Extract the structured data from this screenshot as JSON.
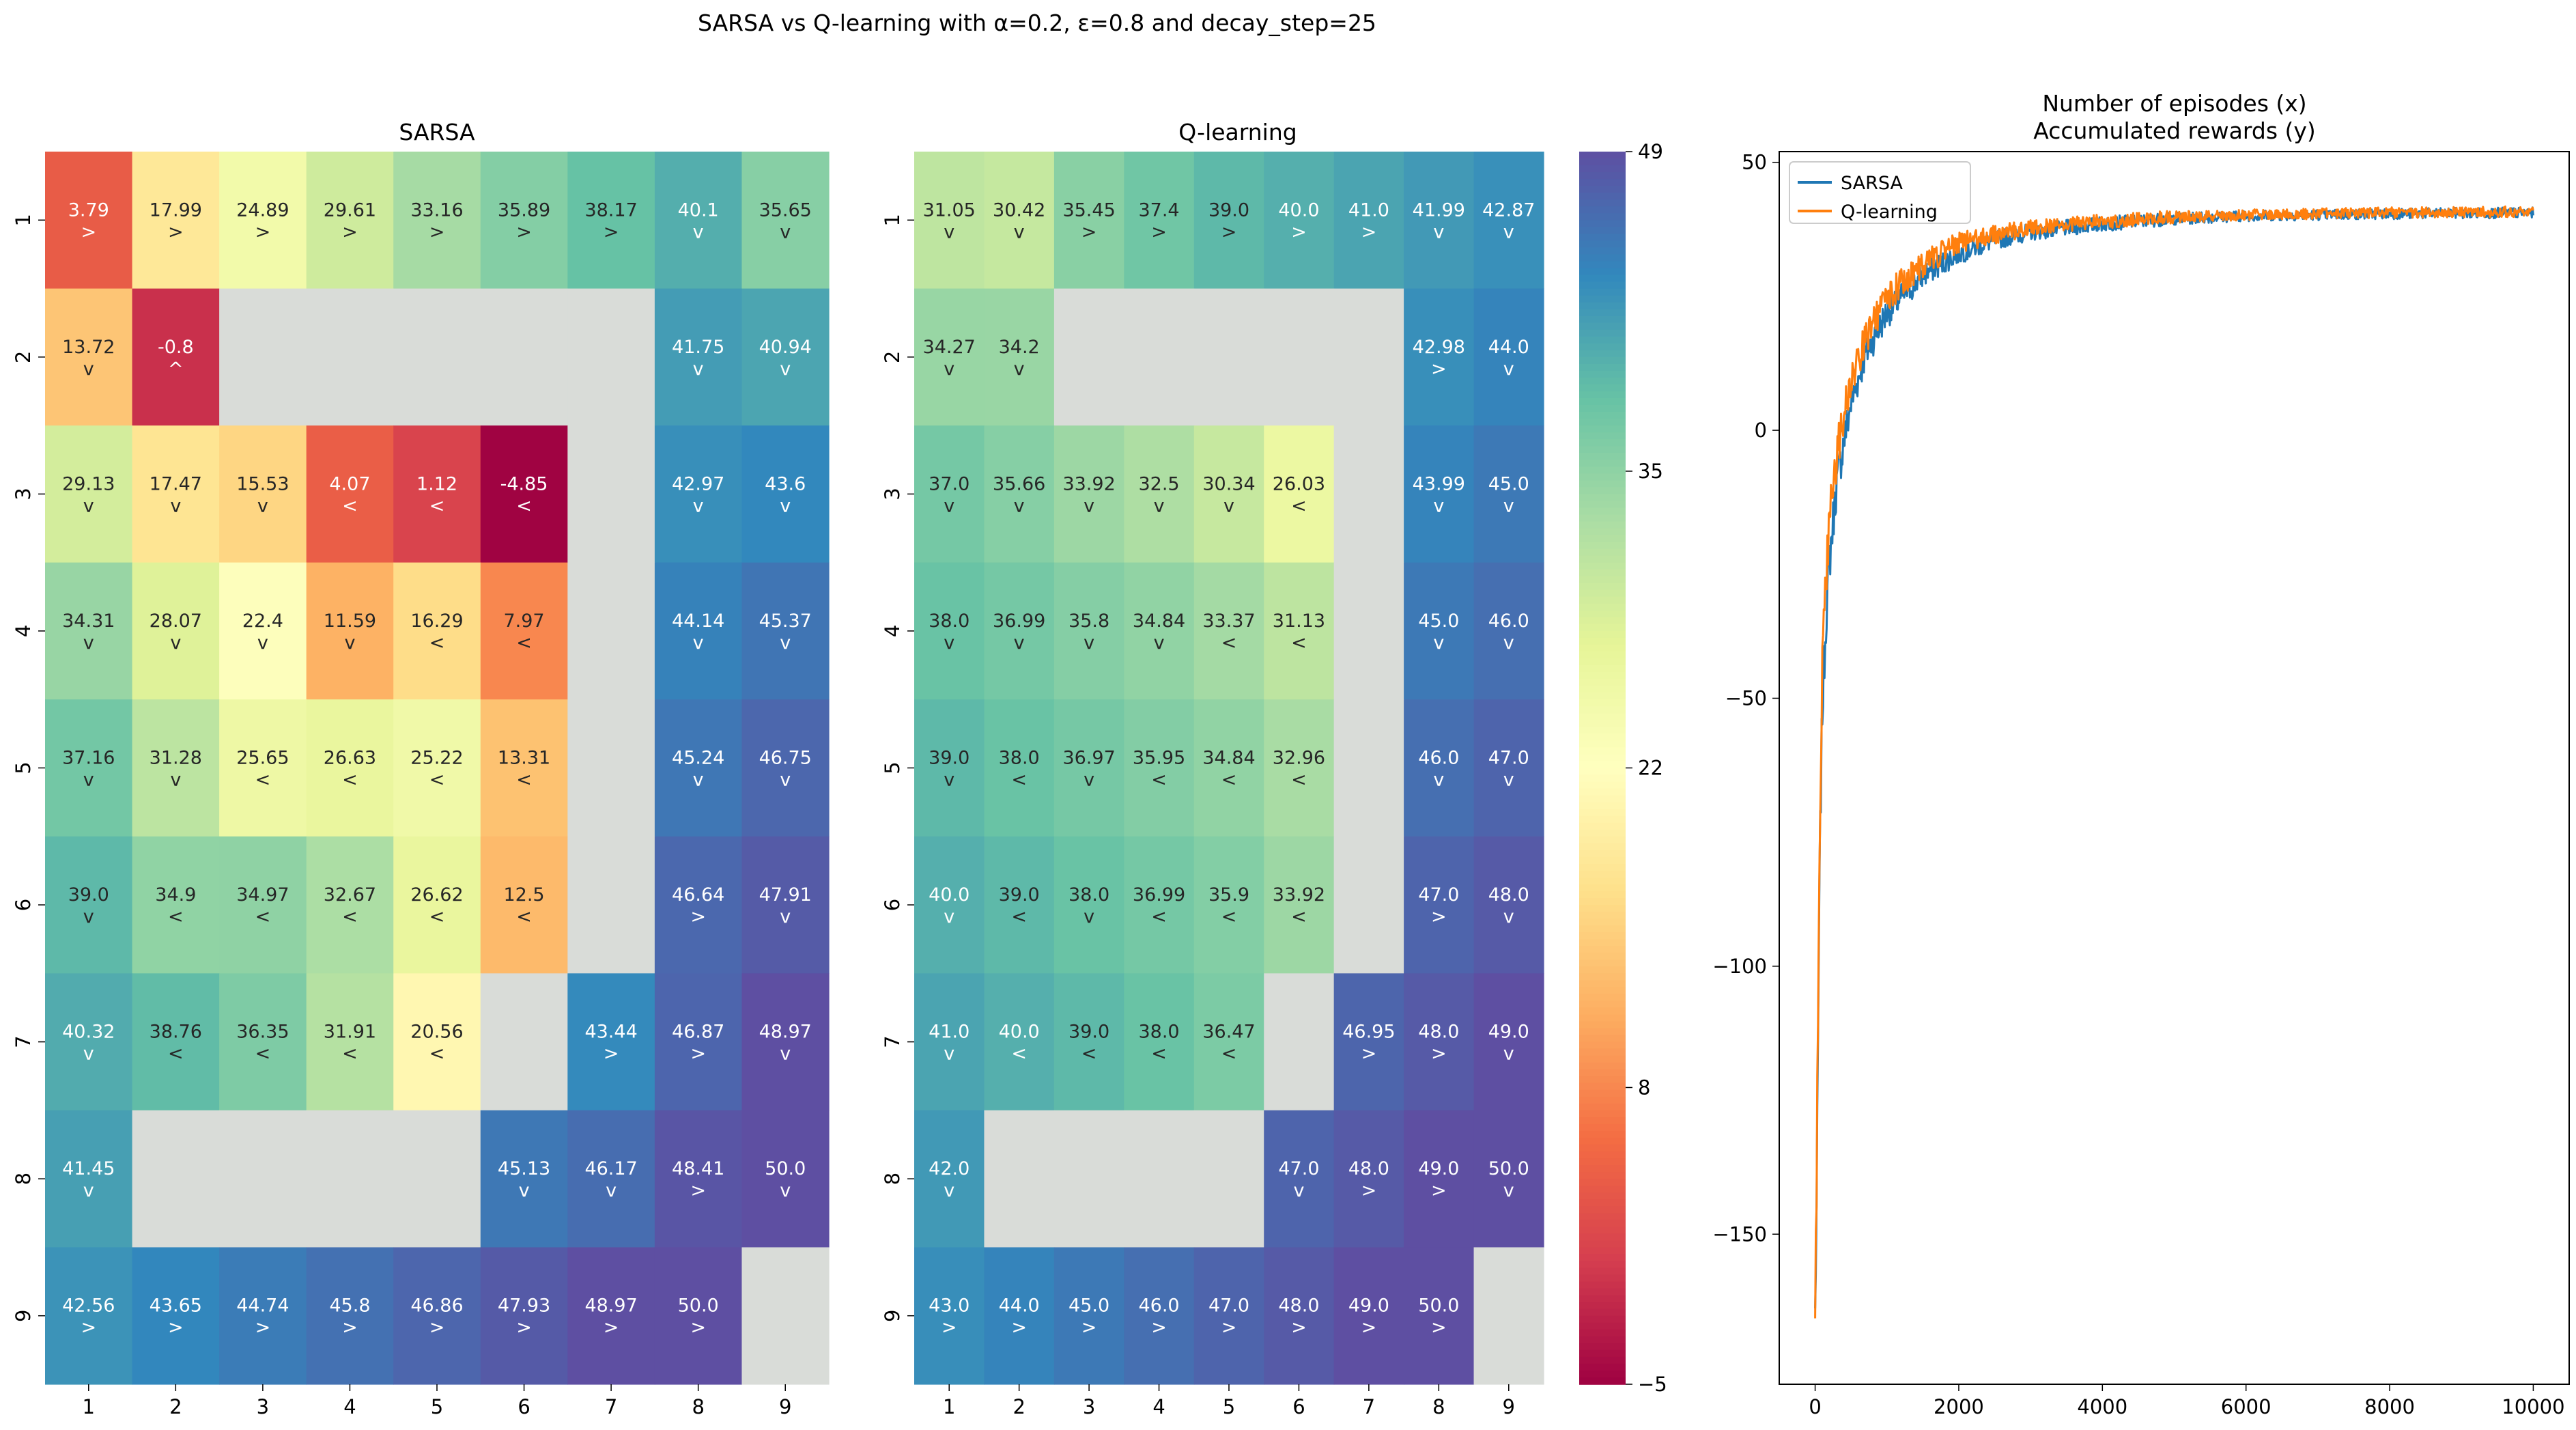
{
  "figure": {
    "suptitle": "SARSA vs Q-learning with α=0.2, ε=0.8 and decay_step=25"
  },
  "colorbar": {
    "vmin": -5,
    "vmax": 49,
    "ticks": [
      -5,
      8,
      22,
      35,
      49
    ],
    "colormap": "Spectral"
  },
  "chart_data": [
    {
      "type": "heatmap",
      "title": "SARSA",
      "x_ticks": [
        "1",
        "2",
        "3",
        "4",
        "5",
        "6",
        "7",
        "8",
        "9"
      ],
      "y_ticks": [
        "1",
        "2",
        "3",
        "4",
        "5",
        "6",
        "7",
        "8",
        "9"
      ],
      "values": [
        [
          3.79,
          17.99,
          24.89,
          29.61,
          33.16,
          35.89,
          38.17,
          40.1,
          35.65
        ],
        [
          13.72,
          -0.8,
          null,
          null,
          null,
          null,
          null,
          41.75,
          40.94
        ],
        [
          29.13,
          17.47,
          15.53,
          4.07,
          1.12,
          -4.85,
          null,
          42.97,
          43.6
        ],
        [
          34.31,
          28.07,
          22.4,
          11.59,
          16.29,
          7.97,
          null,
          44.14,
          45.37
        ],
        [
          37.16,
          31.28,
          25.65,
          26.63,
          25.22,
          13.31,
          null,
          45.24,
          46.75
        ],
        [
          39.0,
          34.9,
          34.97,
          32.67,
          26.62,
          12.5,
          null,
          46.64,
          47.91
        ],
        [
          40.32,
          38.76,
          36.35,
          31.91,
          20.56,
          null,
          43.44,
          46.87,
          48.97
        ],
        [
          41.45,
          null,
          null,
          null,
          null,
          45.13,
          46.17,
          48.41,
          50.0
        ],
        [
          42.56,
          43.65,
          44.74,
          45.8,
          46.86,
          47.93,
          48.97,
          50.0,
          null
        ]
      ],
      "labels": [
        [
          "3.79",
          "17.99",
          "24.89",
          "29.61",
          "33.16",
          "35.89",
          "38.17",
          "40.1",
          "35.65"
        ],
        [
          "13.72",
          "-0.8",
          "",
          "",
          "",
          "",
          "",
          "41.75",
          "40.94"
        ],
        [
          "29.13",
          "17.47",
          "15.53",
          "4.07",
          "1.12",
          "-4.85",
          "",
          "42.97",
          "43.6"
        ],
        [
          "34.31",
          "28.07",
          "22.4",
          "11.59",
          "16.29",
          "7.97",
          "",
          "44.14",
          "45.37"
        ],
        [
          "37.16",
          "31.28",
          "25.65",
          "26.63",
          "25.22",
          "13.31",
          "",
          "45.24",
          "46.75"
        ],
        [
          "39.0",
          "34.9",
          "34.97",
          "32.67",
          "26.62",
          "12.5",
          "",
          "46.64",
          "47.91"
        ],
        [
          "40.32",
          "38.76",
          "36.35",
          "31.91",
          "20.56",
          "",
          "43.44",
          "46.87",
          "48.97"
        ],
        [
          "41.45",
          "",
          "",
          "",
          "",
          "45.13",
          "46.17",
          "48.41",
          "50.0"
        ],
        [
          "42.56",
          "43.65",
          "44.74",
          "45.8",
          "46.86",
          "47.93",
          "48.97",
          "50.0",
          ""
        ]
      ],
      "arrows": [
        [
          ">",
          ">",
          ">",
          ">",
          ">",
          ">",
          ">",
          "v",
          "v"
        ],
        [
          "v",
          "^",
          "",
          "",
          "",
          "",
          "",
          "v",
          "v"
        ],
        [
          "v",
          "v",
          "v",
          "<",
          "<",
          "<",
          "",
          "v",
          "v"
        ],
        [
          "v",
          "v",
          "v",
          "v",
          "<",
          "<",
          "",
          "v",
          "v"
        ],
        [
          "v",
          "v",
          "<",
          "<",
          "<",
          "<",
          "",
          "v",
          "v"
        ],
        [
          "v",
          "<",
          "<",
          "<",
          "<",
          "<",
          "",
          ">",
          "v"
        ],
        [
          "v",
          "<",
          "<",
          "<",
          "<",
          "",
          ">",
          ">",
          "v"
        ],
        [
          "v",
          "",
          "",
          "",
          "",
          "v",
          "v",
          ">",
          "v"
        ],
        [
          ">",
          ">",
          ">",
          ">",
          ">",
          ">",
          ">",
          ">",
          ""
        ]
      ]
    },
    {
      "type": "heatmap",
      "title": "Q-learning",
      "x_ticks": [
        "1",
        "2",
        "3",
        "4",
        "5",
        "6",
        "7",
        "8",
        "9"
      ],
      "y_ticks": [
        "1",
        "2",
        "3",
        "4",
        "5",
        "6",
        "7",
        "8",
        "9"
      ],
      "values": [
        [
          31.05,
          30.42,
          35.45,
          37.4,
          39.0,
          40.0,
          41.0,
          41.99,
          42.87
        ],
        [
          34.27,
          34.2,
          null,
          null,
          null,
          null,
          null,
          42.98,
          44.0
        ],
        [
          37.0,
          35.66,
          33.92,
          32.5,
          30.34,
          26.03,
          null,
          43.99,
          45.0
        ],
        [
          38.0,
          36.99,
          35.8,
          34.84,
          33.37,
          31.13,
          null,
          45.0,
          46.0
        ],
        [
          39.0,
          38.0,
          36.97,
          35.95,
          34.84,
          32.96,
          null,
          46.0,
          47.0
        ],
        [
          40.0,
          39.0,
          38.0,
          36.99,
          35.9,
          33.92,
          null,
          47.0,
          48.0
        ],
        [
          41.0,
          40.0,
          39.0,
          38.0,
          36.47,
          null,
          46.95,
          48.0,
          49.0
        ],
        [
          42.0,
          null,
          null,
          null,
          null,
          47.0,
          48.0,
          49.0,
          50.0
        ],
        [
          43.0,
          44.0,
          45.0,
          46.0,
          47.0,
          48.0,
          49.0,
          50.0,
          null
        ]
      ],
      "labels": [
        [
          "31.05",
          "30.42",
          "35.45",
          "37.4",
          "39.0",
          "40.0",
          "41.0",
          "41.99",
          "42.87"
        ],
        [
          "34.27",
          "34.2",
          "",
          "",
          "",
          "",
          "",
          "42.98",
          "44.0"
        ],
        [
          "37.0",
          "35.66",
          "33.92",
          "32.5",
          "30.34",
          "26.03",
          "",
          "43.99",
          "45.0"
        ],
        [
          "38.0",
          "36.99",
          "35.8",
          "34.84",
          "33.37",
          "31.13",
          "",
          "45.0",
          "46.0"
        ],
        [
          "39.0",
          "38.0",
          "36.97",
          "35.95",
          "34.84",
          "32.96",
          "",
          "46.0",
          "47.0"
        ],
        [
          "40.0",
          "39.0",
          "38.0",
          "36.99",
          "35.9",
          "33.92",
          "",
          "47.0",
          "48.0"
        ],
        [
          "41.0",
          "40.0",
          "39.0",
          "38.0",
          "36.47",
          "",
          "46.95",
          "48.0",
          "49.0"
        ],
        [
          "42.0",
          "",
          "",
          "",
          "",
          "47.0",
          "48.0",
          "49.0",
          "50.0"
        ],
        [
          "43.0",
          "44.0",
          "45.0",
          "46.0",
          "47.0",
          "48.0",
          "49.0",
          "50.0",
          ""
        ]
      ],
      "arrows": [
        [
          "v",
          "v",
          ">",
          ">",
          ">",
          ">",
          ">",
          "v",
          "v"
        ],
        [
          "v",
          "v",
          "",
          "",
          "",
          "",
          "",
          ">",
          "v"
        ],
        [
          "v",
          "v",
          "v",
          "v",
          "v",
          "<",
          "",
          "v",
          "v"
        ],
        [
          "v",
          "v",
          "v",
          "v",
          "<",
          "<",
          "",
          "v",
          "v"
        ],
        [
          "v",
          "<",
          "v",
          "<",
          "<",
          "<",
          "",
          "v",
          "v"
        ],
        [
          "v",
          "<",
          "v",
          "<",
          "<",
          "<",
          "",
          ">",
          "v"
        ],
        [
          "v",
          "<",
          "<",
          "<",
          "<",
          "",
          ">",
          ">",
          "v"
        ],
        [
          "v",
          "",
          "",
          "",
          "",
          "v",
          ">",
          ">",
          "v"
        ],
        [
          ">",
          ">",
          ">",
          ">",
          ">",
          ">",
          ">",
          ">",
          ""
        ]
      ]
    },
    {
      "type": "line",
      "title": "Number of episodes (x)",
      "subtitle": "Accumulated rewards (y)",
      "xlim": [
        -500,
        10500
      ],
      "ylim": [
        -178,
        52
      ],
      "x_ticks": [
        0,
        2000,
        4000,
        6000,
        8000,
        10000
      ],
      "y_ticks": [
        -150,
        -100,
        -50,
        0,
        50
      ],
      "legend_position": "upper-left",
      "series": [
        {
          "name": "SARSA",
          "color": "#1f77b4",
          "x": [
            0,
            25,
            50,
            75,
            100,
            150,
            200,
            300,
            400,
            500,
            700,
            1000,
            1500,
            2000,
            2500,
            3000,
            4000,
            5000,
            6000,
            7000,
            8000,
            9000,
            10000
          ],
          "y": [
            -165,
            -140,
            -100,
            -70,
            -52,
            -35,
            -24,
            -10,
            -2,
            5,
            14,
            22,
            29,
            33,
            35.5,
            37,
            38.5,
            39.5,
            40,
            40.2,
            40.4,
            40.5,
            40.6
          ],
          "noise": [
            6,
            6,
            6,
            6,
            5,
            5,
            5,
            4,
            4,
            3.5,
            3,
            3,
            2.5,
            2,
            1.8,
            1.6,
            1.4,
            1.2,
            1,
            1,
            1,
            1,
            1
          ]
        },
        {
          "name": "Q-learning",
          "color": "#ff7f0e",
          "x": [
            0,
            25,
            50,
            75,
            100,
            150,
            200,
            300,
            400,
            500,
            700,
            1000,
            1500,
            2000,
            2500,
            3000,
            4000,
            5000,
            6000,
            7000,
            8000,
            9000,
            10000
          ],
          "y": [
            -165,
            -135,
            -92,
            -62,
            -45,
            -28,
            -17,
            -5,
            3,
            9,
            17,
            25,
            31,
            35,
            36.5,
            37.8,
            39,
            39.8,
            40.2,
            40.4,
            40.6,
            40.7,
            40.8
          ],
          "noise": [
            6,
            6,
            6,
            6,
            5,
            5,
            5,
            4,
            4,
            3.5,
            3,
            3,
            2.5,
            2,
            1.8,
            1.6,
            1.4,
            1.2,
            1,
            1,
            1,
            1,
            1
          ]
        }
      ]
    }
  ]
}
